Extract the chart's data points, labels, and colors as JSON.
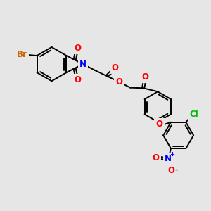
{
  "bg_color": "#e6e6e6",
  "bond_color": "#000000",
  "bond_width": 1.4,
  "dbl_off": 0.055,
  "atom_colors": {
    "O": "#ff0000",
    "N": "#0000ff",
    "Br": "#cc6600",
    "Cl": "#00bb00",
    "C": "#000000"
  },
  "fs": 8.5
}
